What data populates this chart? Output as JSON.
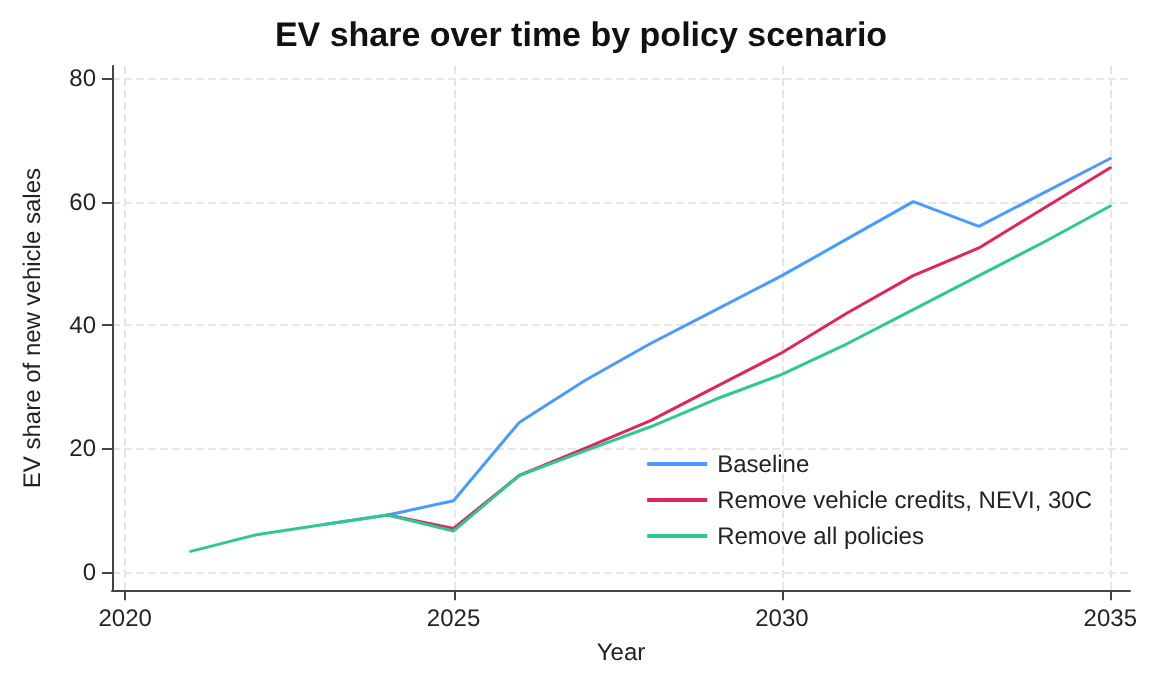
{
  "chart_data": {
    "type": "line",
    "title": "EV share over time by policy scenario",
    "xlabel": "Year",
    "ylabel": "EV share of new vehicle sales",
    "x": [
      2021,
      2022,
      2023,
      2024,
      2025,
      2026,
      2027,
      2028,
      2029,
      2030,
      2031,
      2032,
      2033,
      2034,
      2035
    ],
    "series": [
      {
        "name": "Baseline",
        "color": "#4a9bff",
        "values": [
          null,
          null,
          7.6,
          9.2,
          11.5,
          24.2,
          31,
          37,
          42.5,
          48,
          54,
          60,
          56,
          61.5,
          67
        ]
      },
      {
        "name": "Remove vehicle credits, NEVI, 30C",
        "color": "#e0245e",
        "values": [
          null,
          null,
          null,
          9.2,
          7,
          15.6,
          20,
          24.5,
          30,
          35.5,
          42,
          48,
          52.5,
          59,
          65.5
        ]
      },
      {
        "name": "Remove all policies",
        "color": "#2ec98e",
        "values": [
          3.3,
          6,
          7.6,
          9.2,
          6.6,
          15.6,
          19.6,
          23.5,
          28,
          32,
          37,
          42.5,
          48,
          53.5,
          59.3
        ]
      }
    ],
    "xlim": [
      2019.8,
      2035.3
    ],
    "xticks": [
      2020,
      2025,
      2030,
      2035
    ],
    "ylim": [
      -3,
      82
    ],
    "yticks": [
      0,
      20,
      40,
      60,
      80
    ],
    "grid": true,
    "legend": "bottom right",
    "marker": "none",
    "line_style": "solid"
  }
}
